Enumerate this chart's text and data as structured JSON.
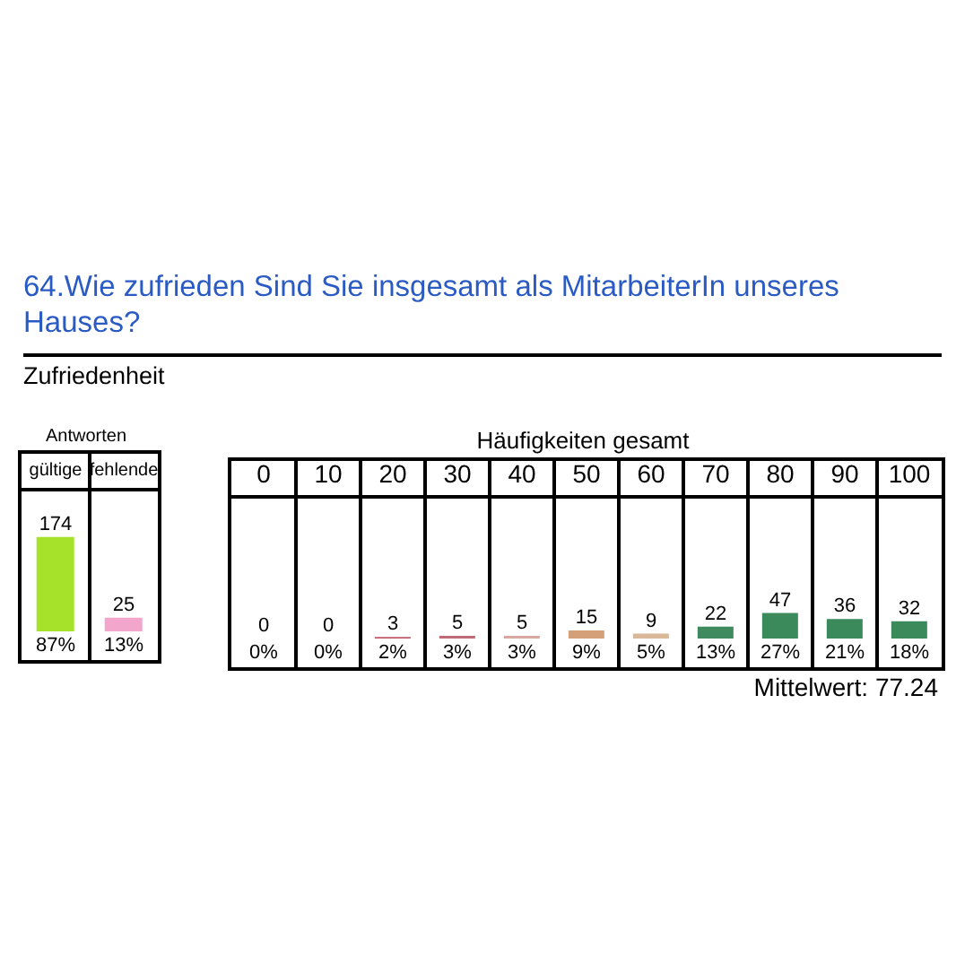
{
  "chart_data": [
    {
      "type": "other",
      "title": "64.Wie zufrieden Sind Sie insgesamt als MitarbeiterIn unseres Hauses?",
      "subtitle": "Zufriedenheit"
    },
    {
      "type": "bar",
      "title": "Antworten",
      "categories": [
        "gültige",
        "fehlende"
      ],
      "values": [
        174,
        25
      ],
      "colors": [
        "#a6e22a",
        "#f2a6cc"
      ],
      "data_labels": true,
      "tick_labels": "x",
      "annotations": [
        {
          "text": "87%",
          "x": "gültige",
          "y": 0
        },
        {
          "text": "13%",
          "x": "fehlende",
          "y": 0
        }
      ]
    },
    {
      "type": "bar",
      "title": "Häufigkeiten gesamt",
      "categories": [
        "0",
        "10",
        "20",
        "30",
        "40",
        "50",
        "60",
        "70",
        "80",
        "90",
        "100"
      ],
      "values": [
        0,
        0,
        3,
        5,
        5,
        15,
        9,
        22,
        47,
        36,
        32
      ],
      "colors": [
        "#c0c0c0",
        "#c0c0c0",
        "#c05a6a",
        "#c06a78",
        "#d8a8a0",
        "#d4a07a",
        "#d8b898",
        "#3f8a5e",
        "#3a8a5c",
        "#3a8a5c",
        "#3a8a5c"
      ],
      "data_labels": true,
      "tick_labels": "x",
      "annotations": [
        {
          "text": "0%",
          "x": "0",
          "y": 0
        },
        {
          "text": "0%",
          "x": "10",
          "y": 0
        },
        {
          "text": "2%",
          "x": "20",
          "y": 0
        },
        {
          "text": "3%",
          "x": "30",
          "y": 0
        },
        {
          "text": "3%",
          "x": "40",
          "y": 0
        },
        {
          "text": "9%",
          "x": "50",
          "y": 0
        },
        {
          "text": "5%",
          "x": "60",
          "y": 0
        },
        {
          "text": "13%",
          "x": "70",
          "y": 0
        },
        {
          "text": "27%",
          "x": "80",
          "y": 0
        },
        {
          "text": "21%",
          "x": "90",
          "y": 0
        },
        {
          "text": "18%",
          "x": "100",
          "y": 0
        },
        "Mittelwert: 77.24"
      ]
    }
  ]
}
